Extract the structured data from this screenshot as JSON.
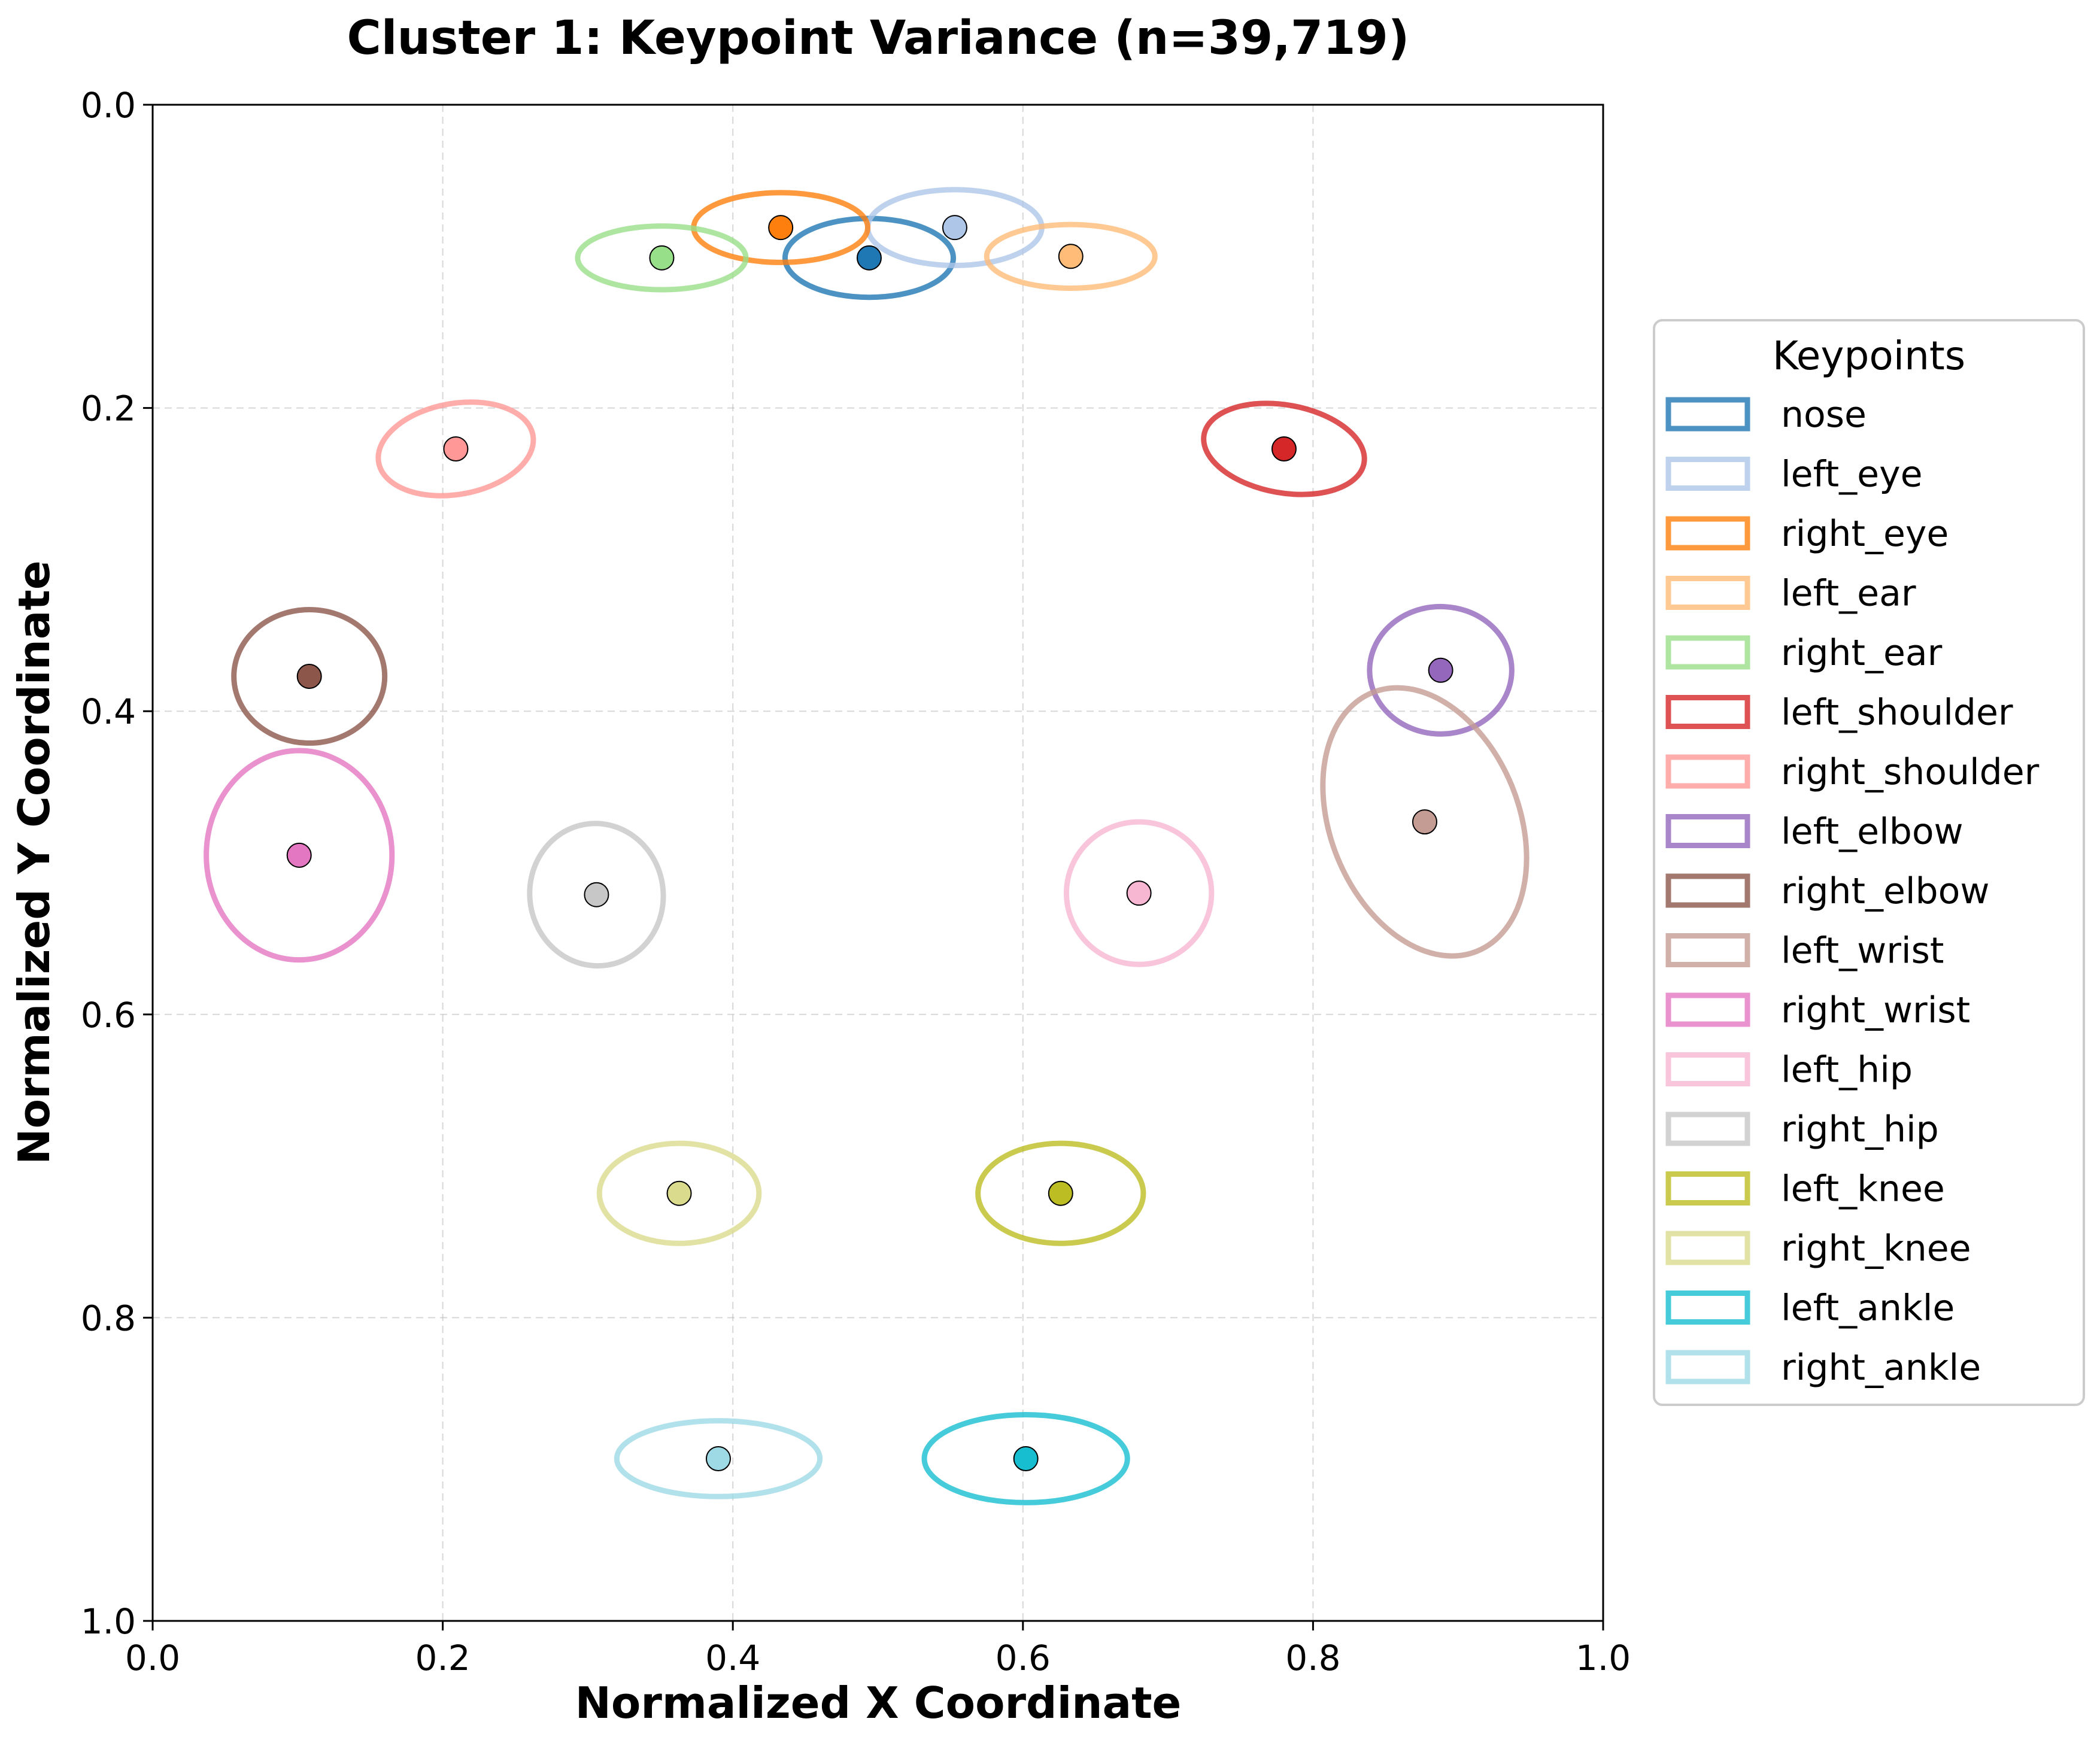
{
  "chart_data": {
    "type": "scatter",
    "title": "Cluster 1: Keypoint Variance (n=39,719)",
    "xlabel": "Normalized X Coordinate",
    "ylabel": "Normalized Y Coordinate",
    "xlim": [
      0.0,
      1.0
    ],
    "ylim": [
      1.0,
      0.0
    ],
    "y_inverted": true,
    "grid": true,
    "xticks": [
      "0.0",
      "0.2",
      "0.4",
      "0.6",
      "0.8",
      "1.0"
    ],
    "yticks": [
      "0.0",
      "0.2",
      "0.4",
      "0.6",
      "0.8",
      "1.0"
    ],
    "legend_title": "Keypoints",
    "legend_position": "outside-right",
    "series": [
      {
        "name": "nose",
        "color": "#1f77b4",
        "x": 0.494,
        "y": 0.101,
        "sx": 0.058,
        "sy": 0.026,
        "angle": 0
      },
      {
        "name": "left_eye",
        "color": "#aec7e8",
        "x": 0.553,
        "y": 0.081,
        "sx": 0.06,
        "sy": 0.025,
        "angle": 0
      },
      {
        "name": "right_eye",
        "color": "#ff7f0e",
        "x": 0.433,
        "y": 0.081,
        "sx": 0.06,
        "sy": 0.023,
        "angle": 0
      },
      {
        "name": "left_ear",
        "color": "#ffbb78",
        "x": 0.633,
        "y": 0.1,
        "sx": 0.058,
        "sy": 0.021,
        "angle": 0
      },
      {
        "name": "right_ear",
        "color": "#98df8a",
        "x": 0.351,
        "y": 0.101,
        "sx": 0.058,
        "sy": 0.021,
        "angle": 0
      },
      {
        "name": "left_shoulder",
        "color": "#d62728",
        "x": 0.78,
        "y": 0.227,
        "sx": 0.056,
        "sy": 0.029,
        "angle": 10
      },
      {
        "name": "right_shoulder",
        "color": "#ff9896",
        "x": 0.209,
        "y": 0.227,
        "sx": 0.054,
        "sy": 0.03,
        "angle": -10
      },
      {
        "name": "left_elbow",
        "color": "#9467bd",
        "x": 0.888,
        "y": 0.373,
        "sx": 0.049,
        "sy": 0.042,
        "angle": 0
      },
      {
        "name": "right_elbow",
        "color": "#8c564b",
        "x": 0.108,
        "y": 0.377,
        "sx": 0.052,
        "sy": 0.044,
        "angle": 0
      },
      {
        "name": "left_wrist",
        "color": "#c49c94",
        "x": 0.877,
        "y": 0.473,
        "sx": 0.065,
        "sy": 0.092,
        "angle": -22
      },
      {
        "name": "right_wrist",
        "color": "#e377c2",
        "x": 0.101,
        "y": 0.495,
        "sx": 0.064,
        "sy": 0.069,
        "angle": 0
      },
      {
        "name": "left_hip",
        "color": "#f7b6d2",
        "x": 0.68,
        "y": 0.52,
        "sx": 0.05,
        "sy": 0.047,
        "angle": 0
      },
      {
        "name": "right_hip",
        "color": "#c7c7c7",
        "x": 0.306,
        "y": 0.521,
        "sx": 0.046,
        "sy": 0.047,
        "angle": -8
      },
      {
        "name": "left_knee",
        "color": "#bcbd22",
        "x": 0.626,
        "y": 0.718,
        "sx": 0.057,
        "sy": 0.033,
        "angle": 0
      },
      {
        "name": "right_knee",
        "color": "#dbdb8d",
        "x": 0.363,
        "y": 0.718,
        "sx": 0.055,
        "sy": 0.033,
        "angle": 0
      },
      {
        "name": "left_ankle",
        "color": "#17becf",
        "x": 0.602,
        "y": 0.893,
        "sx": 0.07,
        "sy": 0.029,
        "angle": 0
      },
      {
        "name": "right_ankle",
        "color": "#9edae5",
        "x": 0.39,
        "y": 0.893,
        "sx": 0.07,
        "sy": 0.025,
        "angle": 0
      }
    ]
  }
}
